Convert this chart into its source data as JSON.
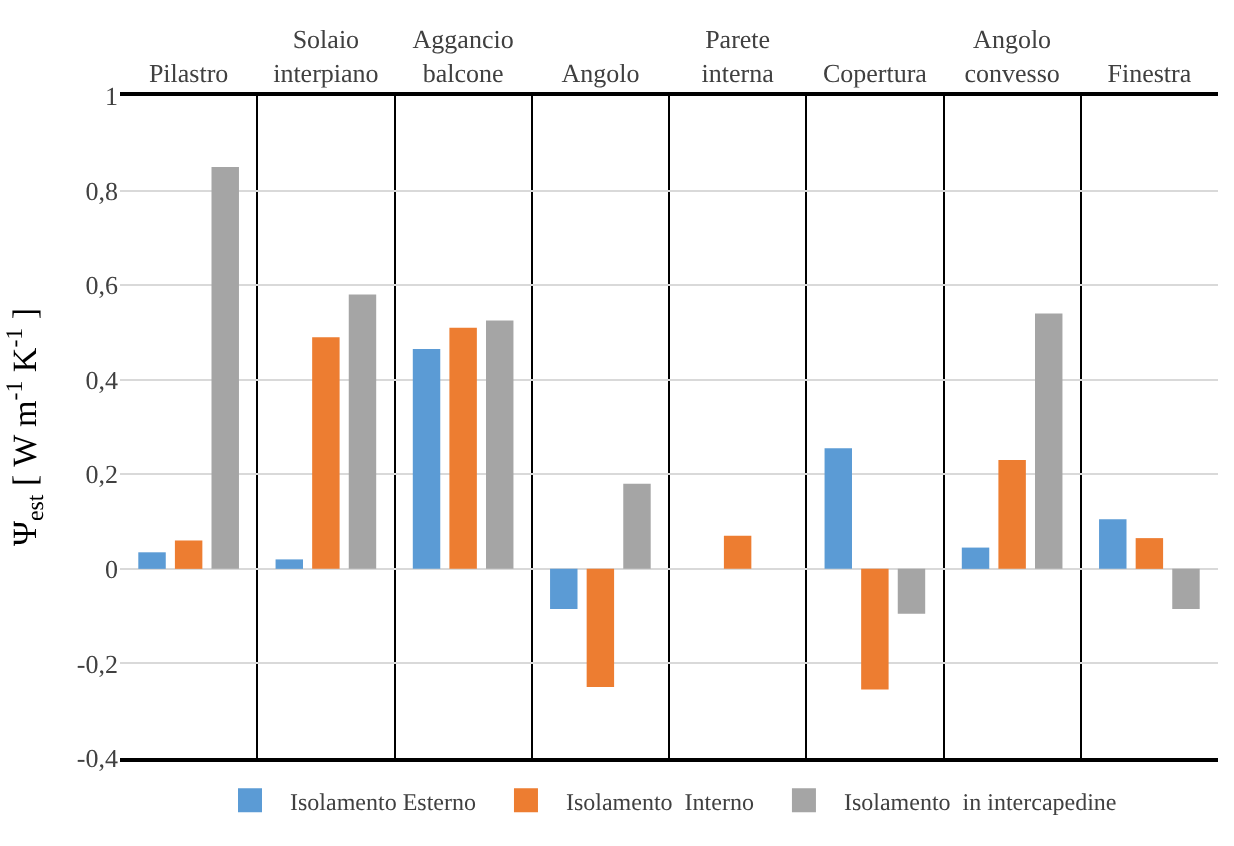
{
  "chart_data": {
    "type": "bar",
    "ylabel": "Ψ$_{est}$ [ W m$^{-1}$ K$^{-1}$ ]",
    "categories": [
      "Pilastro",
      "Solaio\ninterpiano",
      "Aggancio\nbalcone",
      "Angolo",
      "Parete\ninterna",
      "Copertura",
      "Angolo\nconvesso",
      "Finestra"
    ],
    "series": [
      {
        "name": "Isolamento Esterno",
        "color": "#5b9bd5",
        "values": [
          0.035,
          0.02,
          0.465,
          -0.085,
          null,
          0.255,
          0.045,
          0.105
        ]
      },
      {
        "name": "Isolamento  Interno",
        "color": "#ed7d31",
        "values": [
          0.06,
          0.49,
          0.51,
          -0.25,
          0.07,
          -0.255,
          0.23,
          0.065
        ]
      },
      {
        "name": "Isolamento  in intercapedine",
        "color": "#a5a5a5",
        "values": [
          0.85,
          0.58,
          0.525,
          0.18,
          null,
          -0.095,
          0.54,
          -0.085
        ]
      }
    ],
    "ylim": [
      -0.4,
      1
    ],
    "yticks": [
      {
        "value": -0.4,
        "label": "-0,4"
      },
      {
        "value": -0.2,
        "label": "-0,2"
      },
      0,
      {
        "value": 0.2,
        "label": "0,2"
      },
      {
        "value": 0.4,
        "label": "0,4"
      },
      {
        "value": 0.6,
        "label": "0,6"
      },
      {
        "value": 0.8,
        "label": "0,8"
      },
      1
    ],
    "grid": "y",
    "legend": "bottom"
  }
}
